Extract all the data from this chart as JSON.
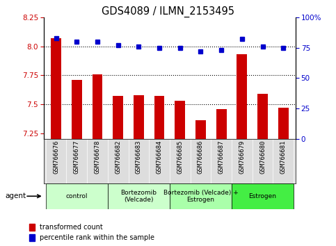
{
  "title": "GDS4089 / ILMN_2153495",
  "samples": [
    "GSM766676",
    "GSM766677",
    "GSM766678",
    "GSM766682",
    "GSM766683",
    "GSM766684",
    "GSM766685",
    "GSM766686",
    "GSM766687",
    "GSM766679",
    "GSM766680",
    "GSM766681"
  ],
  "bar_values": [
    8.07,
    7.71,
    7.76,
    7.57,
    7.58,
    7.57,
    7.53,
    7.36,
    7.46,
    7.93,
    7.59,
    7.47
  ],
  "percentile_values": [
    83,
    80,
    80,
    77,
    76,
    75,
    75,
    72,
    73,
    82,
    76,
    75
  ],
  "ylim_left": [
    7.2,
    8.25
  ],
  "ylim_right": [
    0,
    100
  ],
  "yticks_left": [
    7.25,
    7.5,
    7.75,
    8.0,
    8.25
  ],
  "yticks_right": [
    0,
    25,
    50,
    75,
    100
  ],
  "bar_color": "#cc0000",
  "dot_color": "#0000cc",
  "groups": [
    {
      "label": "control",
      "start": 0,
      "end": 3,
      "color": "#ccffcc"
    },
    {
      "label": "Bortezomib\n(Velcade)",
      "start": 3,
      "end": 6,
      "color": "#ccffcc"
    },
    {
      "label": "Bortezomib (Velcade) +\nEstrogen",
      "start": 6,
      "end": 9,
      "color": "#aaffaa"
    },
    {
      "label": "Estrogen",
      "start": 9,
      "end": 12,
      "color": "#44ee44"
    }
  ],
  "legend_items": [
    {
      "label": "transformed count",
      "color": "#cc0000"
    },
    {
      "label": "percentile rank within the sample",
      "color": "#0000cc"
    }
  ],
  "agent_label": "agent",
  "dotted_lines": [
    7.5,
    7.75,
    8.0
  ],
  "bar_width": 0.5,
  "tick_bg_color": "#dddddd"
}
